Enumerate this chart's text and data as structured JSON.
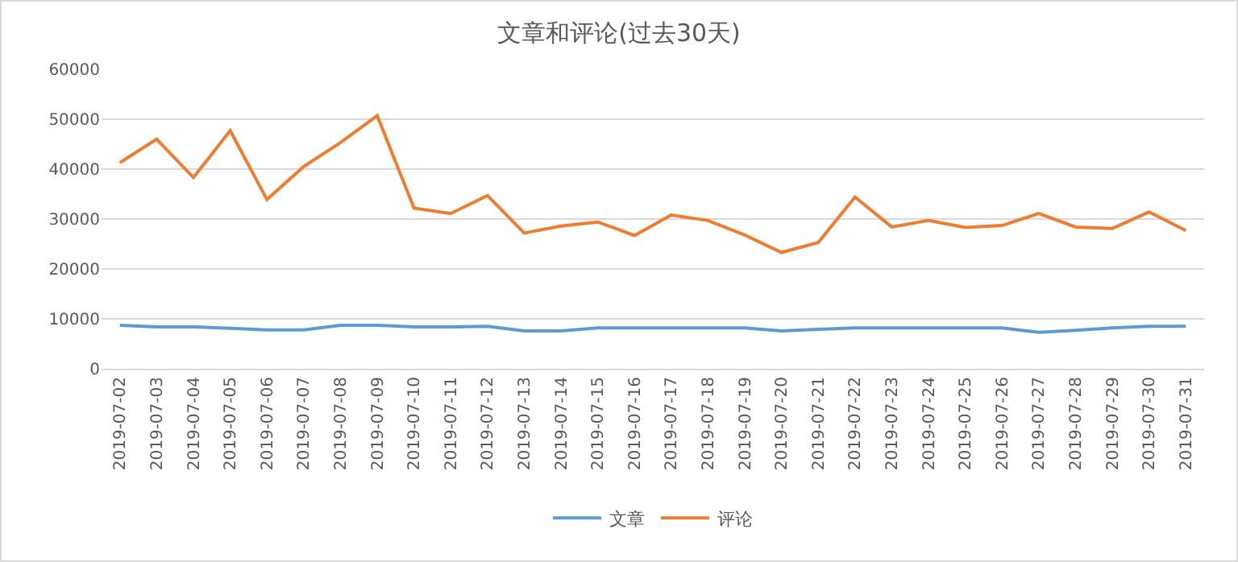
{
  "chart_data": {
    "type": "line",
    "title": "文章和评论(过去30天)",
    "categories": [
      "2019-07-02",
      "2019-07-03",
      "2019-07-04",
      "2019-07-05",
      "2019-07-06",
      "2019-07-07",
      "2019-07-08",
      "2019-07-09",
      "2019-07-10",
      "2019-07-11",
      "2019-07-12",
      "2019-07-13",
      "2019-07-14",
      "2019-07-15",
      "2019-07-16",
      "2019-07-17",
      "2019-07-18",
      "2019-07-19",
      "2019-07-20",
      "2019-07-21",
      "2019-07-22",
      "2019-07-23",
      "2019-07-24",
      "2019-07-25",
      "2019-07-26",
      "2019-07-27",
      "2019-07-28",
      "2019-07-29",
      "2019-07-30",
      "2019-07-31"
    ],
    "series": [
      {
        "name": "文章",
        "color": "#5b9bd5",
        "values": [
          8700,
          8400,
          8400,
          8100,
          7800,
          7800,
          8700,
          8700,
          8400,
          8400,
          8500,
          7600,
          7600,
          8200,
          8200,
          8200,
          8200,
          8200,
          7600,
          7900,
          8200,
          8200,
          8200,
          8200,
          8200,
          7300,
          7700,
          8200,
          8500,
          8500
        ]
      },
      {
        "name": "评论",
        "color": "#ed7d31",
        "values": [
          41300,
          46000,
          38300,
          47700,
          33900,
          40500,
          45300,
          50700,
          32200,
          31100,
          34700,
          27200,
          28600,
          29400,
          26700,
          30800,
          29700,
          26800,
          23300,
          25300,
          34400,
          28400,
          29700,
          28300,
          28700,
          31100,
          28400,
          28100,
          31400,
          27700
        ]
      }
    ],
    "ylim": [
      0,
      60000
    ],
    "yticks": [
      0,
      10000,
      20000,
      30000,
      40000,
      50000,
      60000
    ],
    "grid": "y",
    "legend": "bottom",
    "marker": "none",
    "line_style": "solid"
  }
}
